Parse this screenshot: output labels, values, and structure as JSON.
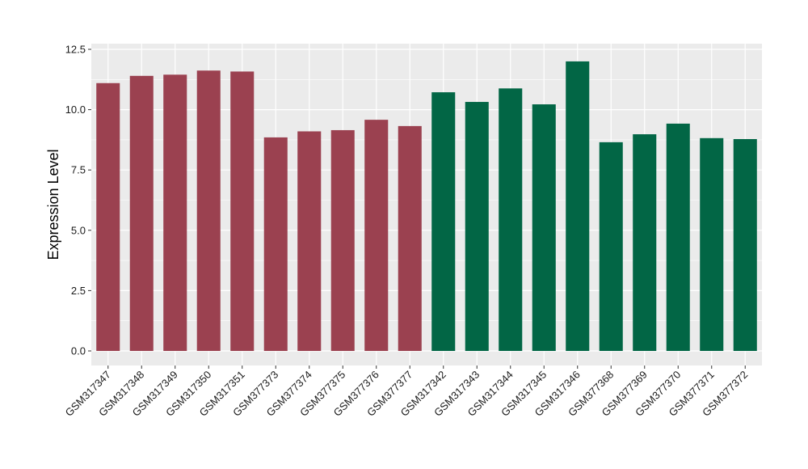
{
  "chart_data": {
    "type": "bar",
    "title": "",
    "xlabel": "",
    "ylabel": "Expression Level",
    "ylim": [
      -0.5,
      12.5
    ],
    "yticks": [
      "0.0",
      "2.5",
      "5.0",
      "7.5",
      "10.0",
      "12.5"
    ],
    "ytick_values": [
      0,
      2.5,
      5,
      7.5,
      10,
      12.5
    ],
    "grid": true,
    "legend": "none",
    "colors": {
      "group1": "#9b4150",
      "group2": "#026645",
      "panel": "#ebebeb",
      "grid": "#ffffff"
    },
    "categories": [
      "GSM317347",
      "GSM317348",
      "GSM317349",
      "GSM317350",
      "GSM317351",
      "GSM377373",
      "GSM377374",
      "GSM377375",
      "GSM377376",
      "GSM377377",
      "GSM317342",
      "GSM317343",
      "GSM317344",
      "GSM317345",
      "GSM317346",
      "GSM377368",
      "GSM377369",
      "GSM377370",
      "GSM377371",
      "GSM377372"
    ],
    "values": [
      11.1,
      11.4,
      11.45,
      11.62,
      11.58,
      8.85,
      9.1,
      9.15,
      9.58,
      9.32,
      10.72,
      10.32,
      10.88,
      10.22,
      12.0,
      8.65,
      8.98,
      9.42,
      8.82,
      8.78
    ],
    "groups": [
      1,
      1,
      1,
      1,
      1,
      1,
      1,
      1,
      1,
      1,
      2,
      2,
      2,
      2,
      2,
      2,
      2,
      2,
      2,
      2
    ]
  }
}
